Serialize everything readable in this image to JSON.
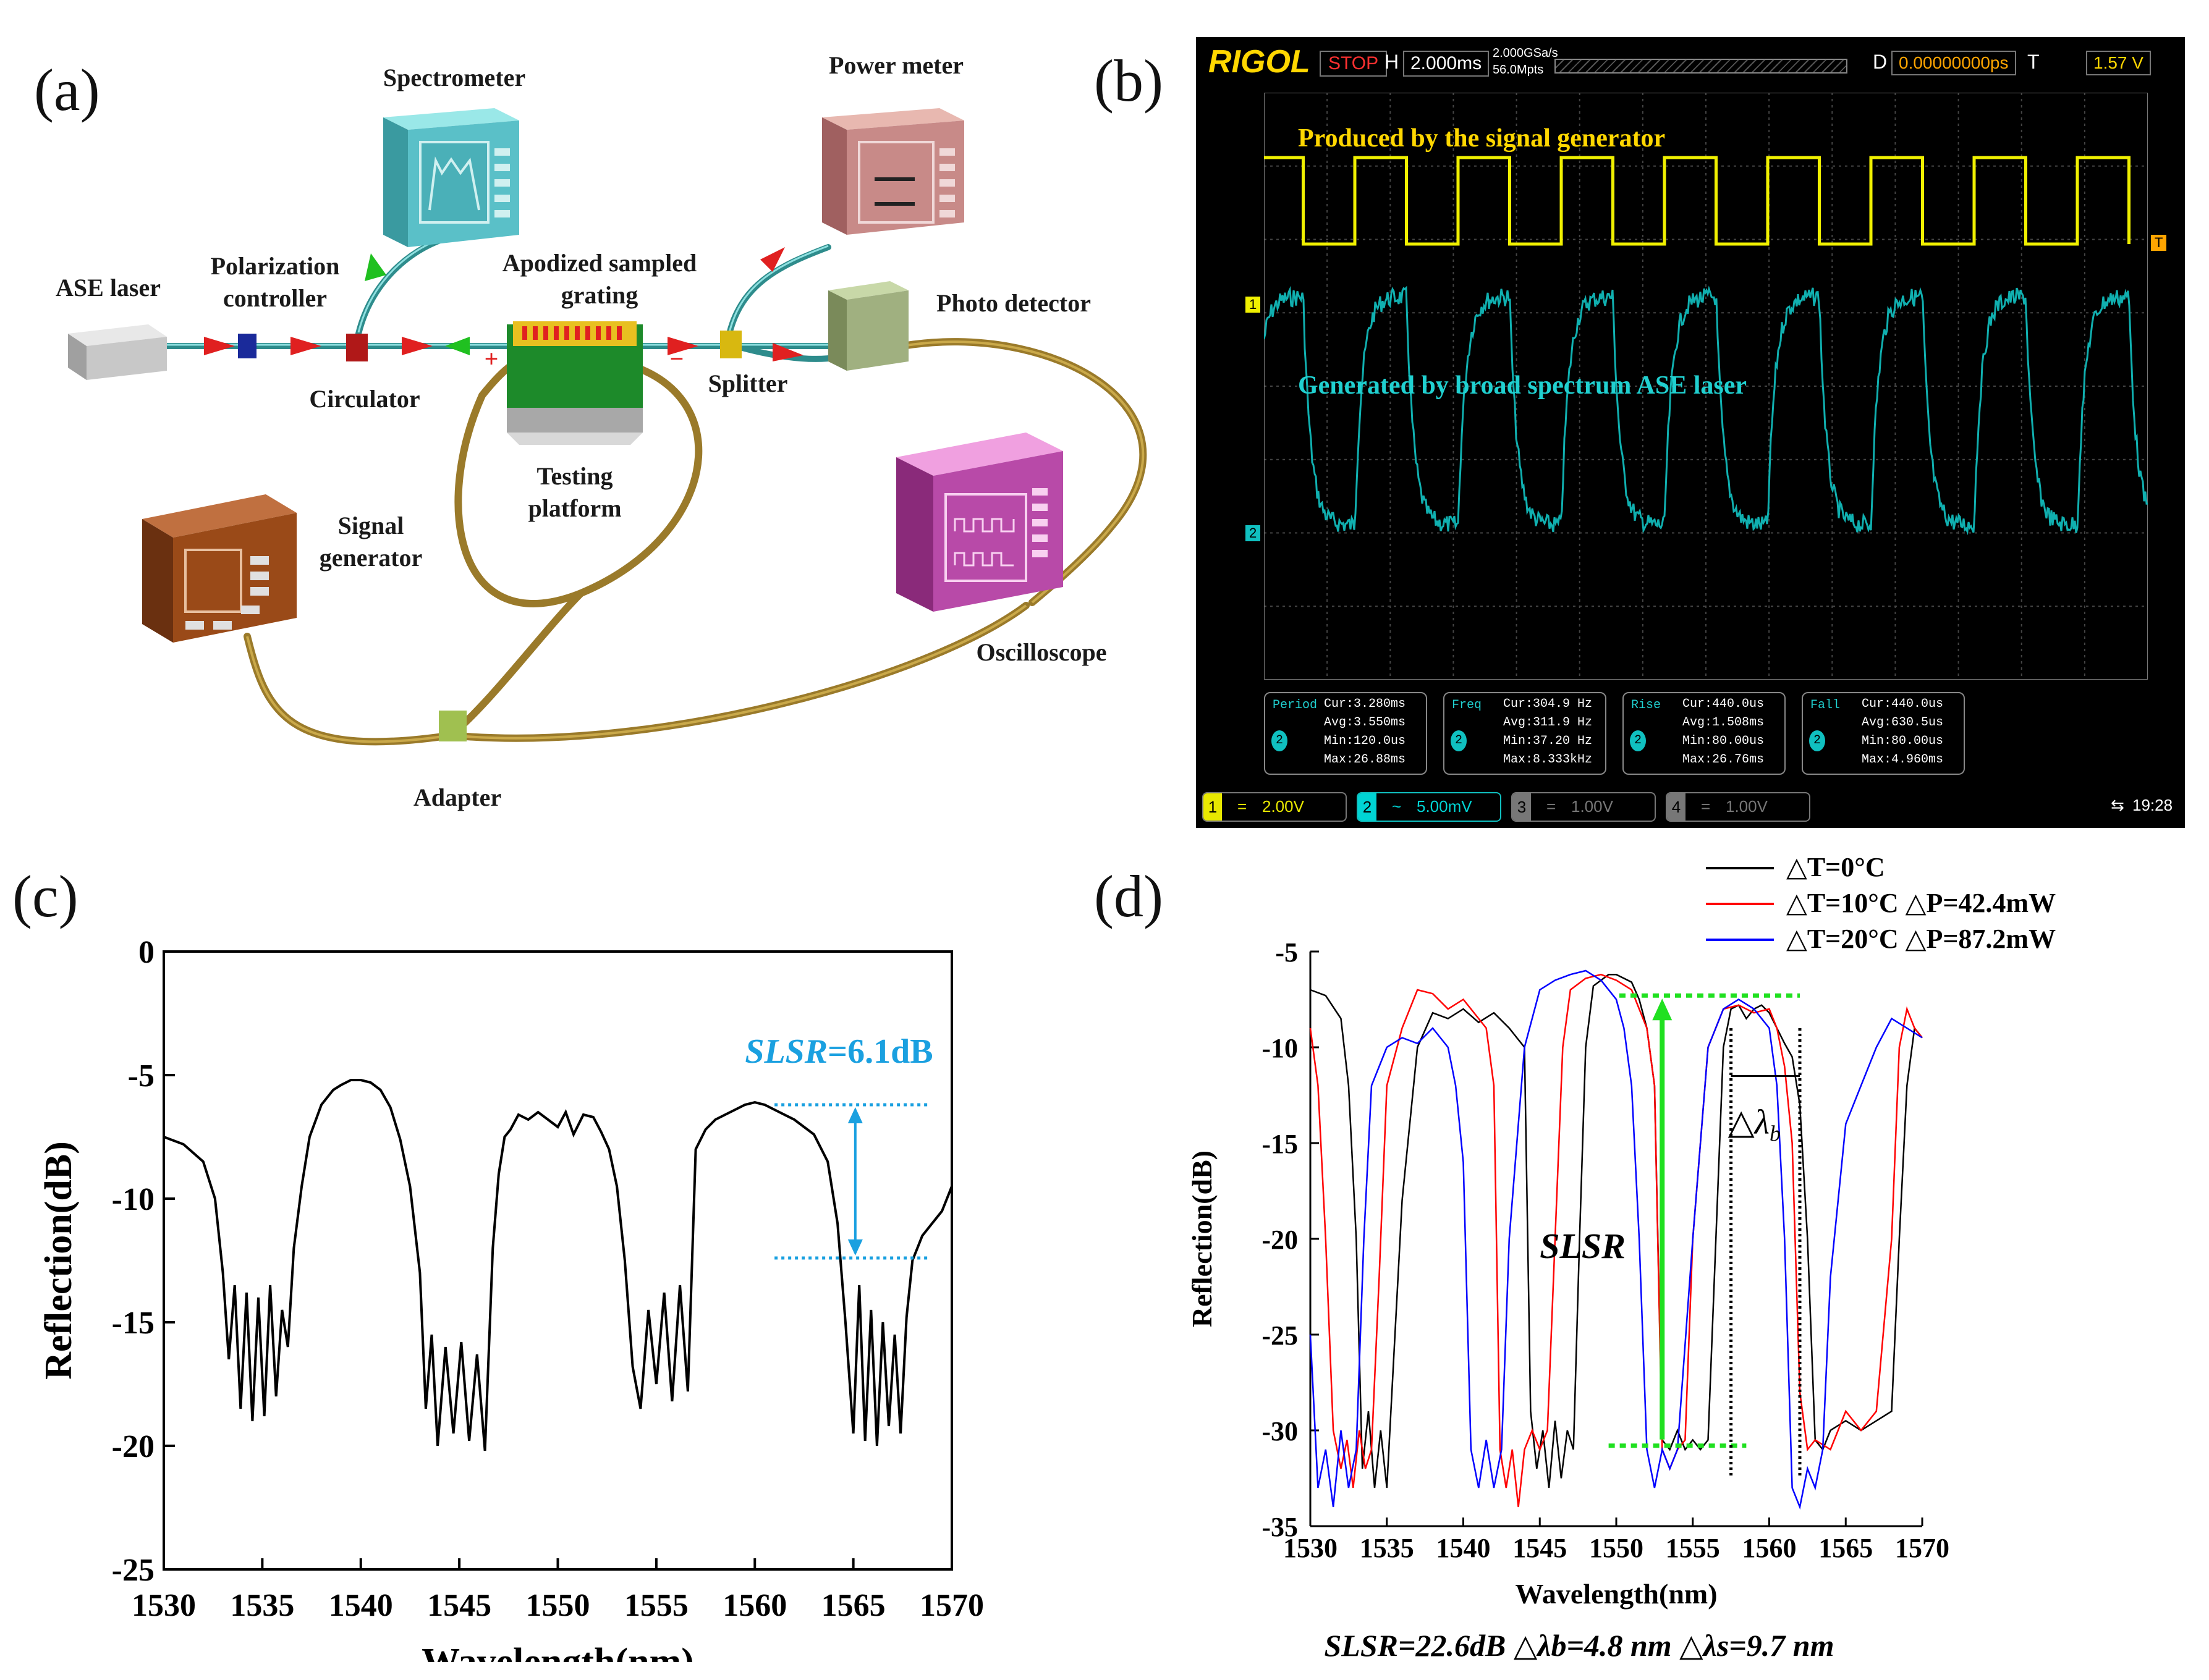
{
  "panels": {
    "a": "(a)",
    "b": "(b)",
    "c": "(c)",
    "d": "(d)"
  },
  "setup": {
    "spectrometer": "Spectrometer",
    "power_meter": "Power meter",
    "ase_laser": "ASE laser",
    "polarization_controller": "Polarization controller",
    "apodized_grating": "Apodized sampled grating",
    "photo_detector": "Photo detector",
    "circulator": "Circulator",
    "splitter": "Splitter",
    "testing_platform": "Testing platform",
    "signal_generator": "Signal generator",
    "oscilloscope": "Oscilloscope",
    "adapter": "Adapter",
    "plus": "+",
    "minus": "−"
  },
  "scope": {
    "brand": "RIGOL",
    "stop": "STOP",
    "h_label": "H",
    "timebase": "2.000ms",
    "sample_rate": "2.000GSa/s",
    "points": "56.0Mpts",
    "d_label": "D",
    "delay": "0.00000000ps",
    "t_label": "T",
    "trigger_level": "1.57 V",
    "ch1_marker": "1",
    "ch2_marker": "2",
    "trigger_marker": "T",
    "ch1_caption": "Produced by the signal generator",
    "ch2_caption": "Generated by broad spectrum ASE laser",
    "measurements": [
      {
        "name": "Period",
        "cur": "Cur:3.280ms",
        "avg": "Avg:3.550ms",
        "min": "Min:120.0us",
        "max": "Max:26.88ms"
      },
      {
        "name": "Freq",
        "cur": "Cur:304.9 Hz",
        "avg": "Avg:311.9 Hz",
        "min": "Min:37.20 Hz",
        "max": "Max:8.333kHz"
      },
      {
        "name": "Rise",
        "cur": "Cur:440.0us",
        "avg": "Avg:1.508ms",
        "min": "Min:80.00us",
        "max": "Max:26.76ms"
      },
      {
        "name": "Fall",
        "cur": "Cur:440.0us",
        "avg": "Avg:630.5us",
        "min": "Min:80.00us",
        "max": "Max:4.960ms"
      }
    ],
    "channels": [
      {
        "num": "1",
        "coupling": "=",
        "scale": "2.00V",
        "color": "#e8e800"
      },
      {
        "num": "2",
        "coupling": "~",
        "scale": "5.00mV",
        "color": "#00d4d4"
      },
      {
        "num": "3",
        "coupling": "=",
        "scale": "1.00V",
        "color": "#777777"
      },
      {
        "num": "4",
        "coupling": "=",
        "scale": "1.00V",
        "color": "#777777"
      }
    ],
    "time": "19:28"
  },
  "chart_data": [
    {
      "id": "c",
      "type": "line",
      "xlabel": "Wavelength(nm)",
      "ylabel": "Reflection(dB)",
      "xlim": [
        1530,
        1570
      ],
      "ylim": [
        -25,
        0
      ],
      "xticks": [
        "1530",
        "1535",
        "1540",
        "1545",
        "1550",
        "1555",
        "1560",
        "1565",
        "1570"
      ],
      "yticks": [
        "0",
        "-5",
        "-10",
        "-15",
        "-20",
        "-25"
      ],
      "annotation": {
        "label": "SLSR",
        "value": "=6.1dB",
        "y_top": -6.2,
        "y_bottom": -12.4
      },
      "series": [
        {
          "name": "reflection",
          "color": "#000000",
          "x": [
            1530,
            1531,
            1532,
            1532.6,
            1533,
            1533.3,
            1533.6,
            1533.9,
            1534.2,
            1534.5,
            1534.8,
            1535.1,
            1535.4,
            1535.7,
            1536,
            1536.3,
            1536.6,
            1537,
            1537.4,
            1538,
            1538.6,
            1539,
            1539.5,
            1540,
            1540.5,
            1541,
            1541.5,
            1542,
            1542.5,
            1543,
            1543.3,
            1543.6,
            1543.9,
            1544.3,
            1544.7,
            1545.1,
            1545.5,
            1545.9,
            1546.3,
            1546.7,
            1547,
            1547.3,
            1547.6,
            1548,
            1548.5,
            1549,
            1549.5,
            1550,
            1550.4,
            1550.8,
            1551.3,
            1551.8,
            1552.2,
            1552.6,
            1553,
            1553.4,
            1553.8,
            1554.2,
            1554.6,
            1555,
            1555.4,
            1555.8,
            1556.2,
            1556.6,
            1557,
            1557.5,
            1558,
            1558.5,
            1559,
            1559.5,
            1560,
            1560.5,
            1561,
            1562,
            1563,
            1563.7,
            1564.2,
            1564.6,
            1565,
            1565.3,
            1565.6,
            1565.9,
            1566.2,
            1566.5,
            1566.8,
            1567.1,
            1567.4,
            1567.7,
            1568,
            1568.5,
            1569,
            1569.5,
            1570
          ],
          "y": [
            -7.5,
            -7.8,
            -8.5,
            -10,
            -13,
            -16.5,
            -13.5,
            -18.5,
            -13.8,
            -19,
            -14,
            -18.8,
            -13.5,
            -18,
            -14.5,
            -16,
            -12,
            -9.5,
            -7.5,
            -6.2,
            -5.6,
            -5.4,
            -5.2,
            -5.2,
            -5.3,
            -5.6,
            -6.3,
            -7.6,
            -9.5,
            -13,
            -18.5,
            -15.5,
            -20,
            -16,
            -19.5,
            -15.8,
            -19.8,
            -16.3,
            -20.2,
            -12,
            -9,
            -7.5,
            -7.2,
            -6.6,
            -6.8,
            -6.5,
            -6.8,
            -7.1,
            -6.5,
            -7.4,
            -6.6,
            -6.7,
            -7.3,
            -8,
            -9.5,
            -12.5,
            -16.8,
            -18.5,
            -14.5,
            -17.5,
            -13.8,
            -18.2,
            -13.5,
            -17.8,
            -8,
            -7.2,
            -6.8,
            -6.6,
            -6.4,
            -6.2,
            -6.1,
            -6.2,
            -6.4,
            -6.8,
            -7.4,
            -8.5,
            -11,
            -15,
            -19.5,
            -13.5,
            -19.8,
            -14.5,
            -20,
            -15,
            -19.2,
            -15.5,
            -19.5,
            -14.8,
            -12.5,
            -11.5,
            -11,
            -10.5,
            -9.5
          ]
        }
      ]
    },
    {
      "id": "d",
      "type": "line",
      "xlabel": "Wavelength(nm)",
      "ylabel": "Reflection(dB)",
      "xlim": [
        1530,
        1570
      ],
      "ylim": [
        -35,
        -5
      ],
      "xticks": [
        "1530",
        "1535",
        "1540",
        "1545",
        "1550",
        "1555",
        "1560",
        "1565",
        "1570"
      ],
      "yticks": [
        "-5",
        "-10",
        "-15",
        "-20",
        "-25",
        "-30",
        "-35"
      ],
      "legend_position": "top-right",
      "annotation_slsr": "SLSR",
      "annotation_dlb": "△λ",
      "annotation_dlb_sub": "b",
      "caption": "SLSR=22.6dB △λb=4.8 nm △λs=9.7 nm",
      "guides": {
        "slsr_top": -7.3,
        "slsr_bottom": -30.8,
        "slsr_x": 1553,
        "dlb_x1": 1557.5,
        "dlb_x2": 1562
      },
      "series": [
        {
          "name": "△T=0°C",
          "color": "#000000",
          "x": [
            1530,
            1531,
            1532,
            1532.5,
            1533,
            1533.4,
            1533.8,
            1534.2,
            1534.6,
            1535,
            1535.3,
            1536,
            1537,
            1538,
            1539,
            1540,
            1541,
            1542,
            1543,
            1543.5,
            1544,
            1544.4,
            1544.8,
            1545.2,
            1545.6,
            1546,
            1546.4,
            1546.8,
            1547.2,
            1547.6,
            1548,
            1548.5,
            1549,
            1549.5,
            1550,
            1550.5,
            1551,
            1551.5,
            1552,
            1552.5,
            1553,
            1553.5,
            1554,
            1554.5,
            1555,
            1555.5,
            1556,
            1557,
            1557.5,
            1558,
            1558.5,
            1559,
            1559.5,
            1560,
            1560.5,
            1561,
            1561.5,
            1562,
            1562.5,
            1563,
            1563.5,
            1564,
            1565,
            1566,
            1567,
            1568,
            1568.5,
            1569,
            1569.5,
            1570
          ],
          "y": [
            -7,
            -7.3,
            -8.5,
            -12,
            -20,
            -32,
            -29,
            -33,
            -30,
            -33,
            -28.5,
            -18,
            -10,
            -8.2,
            -8.5,
            -8,
            -8.7,
            -8.2,
            -9,
            -9.5,
            -10,
            -29,
            -32,
            -30,
            -33,
            -29.5,
            -32.5,
            -30,
            -31,
            -20,
            -10,
            -6.8,
            -6.5,
            -6.2,
            -6.2,
            -6.4,
            -6.6,
            -7.5,
            -9,
            -12,
            -30.5,
            -31,
            -30,
            -31,
            -30.5,
            -31,
            -30.5,
            -10,
            -8,
            -7.8,
            -8.5,
            -8,
            -7.8,
            -8.2,
            -9,
            -9.8,
            -10.5,
            -13,
            -20,
            -30.5,
            -31,
            -30,
            -29.5,
            -30,
            -29.5,
            -29,
            -20,
            -12,
            -9,
            -9.5
          ]
        },
        {
          "name": "△T=10°C △P=42.4mW",
          "color": "#ff0000",
          "x": [
            1530,
            1530.5,
            1531,
            1531.5,
            1532,
            1532.4,
            1532.8,
            1533.2,
            1533.6,
            1534,
            1534.5,
            1535,
            1536,
            1537,
            1538,
            1539,
            1540,
            1541,
            1541.5,
            1542,
            1542.4,
            1542.8,
            1543.2,
            1543.6,
            1544,
            1544.5,
            1545,
            1545.5,
            1546,
            1546.5,
            1547,
            1548,
            1549,
            1550,
            1551,
            1551.5,
            1552,
            1552.5,
            1553,
            1553.5,
            1554,
            1554.5,
            1555,
            1556,
            1557,
            1558,
            1559,
            1560,
            1560.5,
            1561,
            1561.5,
            1562,
            1562.5,
            1563,
            1564,
            1565,
            1566,
            1567,
            1568,
            1568.5,
            1569,
            1569.5,
            1570
          ],
          "y": [
            -9,
            -12,
            -20,
            -30,
            -32,
            -30.5,
            -33,
            -30,
            -32,
            -31,
            -22,
            -12,
            -9,
            -7,
            -7.2,
            -8,
            -7.5,
            -8.5,
            -9,
            -12,
            -31,
            -33,
            -31,
            -34,
            -31,
            -30,
            -31,
            -30,
            -20,
            -10,
            -7,
            -6.4,
            -6.2,
            -6.5,
            -7,
            -8,
            -9,
            -12,
            -31,
            -32,
            -31,
            -30.5,
            -20,
            -10,
            -8,
            -7.8,
            -8.2,
            -8,
            -9,
            -11,
            -15,
            -28,
            -31,
            -30.5,
            -31,
            -29,
            -30,
            -29,
            -20,
            -10,
            -8,
            -9,
            -9.5
          ]
        },
        {
          "name": "△T=20°C △P=87.2mW",
          "color": "#0000ff",
          "x": [
            1530,
            1530.5,
            1531,
            1531.5,
            1532,
            1532.5,
            1533,
            1533.5,
            1534,
            1535,
            1536,
            1537,
            1538,
            1539,
            1539.5,
            1540,
            1540.5,
            1541,
            1541.5,
            1542,
            1542.5,
            1543,
            1544,
            1545,
            1546,
            1547,
            1548,
            1549,
            1550,
            1550.5,
            1551,
            1551.5,
            1552,
            1552.5,
            1553,
            1553.5,
            1554,
            1555,
            1556,
            1557,
            1558,
            1559,
            1560,
            1560.5,
            1561,
            1561.5,
            1562,
            1562.5,
            1563,
            1563.5,
            1564,
            1565,
            1566,
            1567,
            1568,
            1569,
            1570
          ],
          "y": [
            -25,
            -33,
            -31,
            -34,
            -30,
            -33,
            -31,
            -20,
            -12,
            -10,
            -9.5,
            -9.8,
            -9,
            -10,
            -12,
            -16,
            -31,
            -33,
            -30.5,
            -33,
            -31,
            -20,
            -10,
            -7,
            -6.5,
            -6.2,
            -6,
            -6.5,
            -7.5,
            -9,
            -12,
            -20,
            -31,
            -33,
            -31,
            -32,
            -31,
            -20,
            -10,
            -8,
            -7.5,
            -8,
            -9,
            -12,
            -20,
            -33,
            -34,
            -32,
            -33,
            -31,
            -22,
            -14,
            -12,
            -10,
            -8.5,
            -9,
            -9.5
          ]
        }
      ]
    }
  ]
}
